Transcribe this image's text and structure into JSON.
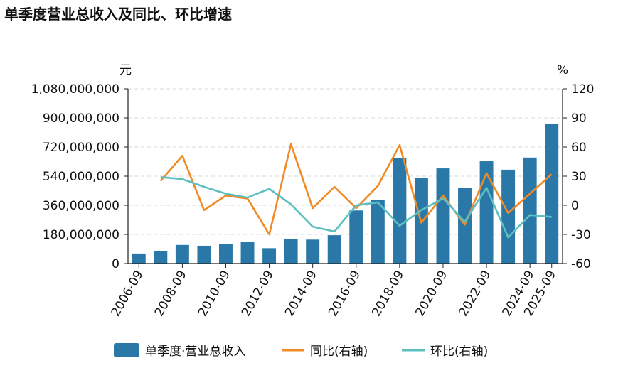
{
  "header": {
    "title": "单季度营业总收入及同比、环比增速"
  },
  "chart_data": {
    "type": "bar+line",
    "title": "单季度营业总收入及同比、环比增速",
    "left_unit": "元",
    "right_unit": "%",
    "left_ticks": [
      "0",
      "180,000,000",
      "360,000,000",
      "540,000,000",
      "720,000,000",
      "900,000,000",
      "1,080,000,000"
    ],
    "right_ticks": [
      "-60",
      "-30",
      "0",
      "30",
      "60",
      "90",
      "120"
    ],
    "ylim_left": [
      0,
      1080000000
    ],
    "ylim_right": [
      -60,
      120
    ],
    "x_tick_labels": [
      "2006-09",
      "2008-09",
      "2010-09",
      "2012-09",
      "2014-09",
      "2016-09",
      "2018-09",
      "2020-09",
      "2022-09",
      "2024-09",
      "2025-09"
    ],
    "x_tick_positions": [
      0,
      2,
      4,
      6,
      8,
      10,
      12,
      14,
      16,
      18,
      19
    ],
    "categories": [
      "2006-09",
      "2007-09",
      "2008-09",
      "2009-09",
      "2010-09",
      "2011-09",
      "2012-09",
      "2013-09",
      "2014-09",
      "2015-09",
      "2016-09",
      "2017-09",
      "2018-09",
      "2019-09",
      "2020-09",
      "2021-09",
      "2022-09",
      "2023-09",
      "2024-09",
      "2025-09"
    ],
    "series": [
      {
        "name": "单季度·营业总收入",
        "kind": "bar",
        "axis": "left",
        "color": "#2a78a8",
        "values": [
          62000000,
          78000000,
          115000000,
          110000000,
          122000000,
          132000000,
          95000000,
          152000000,
          148000000,
          175000000,
          328000000,
          395000000,
          650000000,
          530000000,
          588000000,
          468000000,
          632000000,
          580000000,
          655000000,
          865000000
        ]
      },
      {
        "name": "同比(右轴)",
        "kind": "line",
        "axis": "right",
        "color": "#f08a24",
        "values": [
          null,
          25,
          51,
          -5,
          10,
          7,
          -30,
          63,
          -3,
          19,
          -3,
          20,
          62,
          -18,
          10,
          -20,
          33,
          -8,
          12,
          32
        ]
      },
      {
        "name": "环比(右轴)",
        "kind": "line",
        "axis": "right",
        "color": "#5cbfc0",
        "values": [
          null,
          29,
          27,
          19,
          12,
          8,
          17,
          1,
          -22,
          -27,
          0,
          3,
          -21,
          -5,
          7,
          -17,
          18,
          -33,
          -10,
          -12
        ]
      }
    ],
    "legend": {
      "placement": "bottom",
      "items": [
        "单季度·营业总收入",
        "同比(右轴)",
        "环比(右轴)"
      ]
    },
    "grid": true
  }
}
